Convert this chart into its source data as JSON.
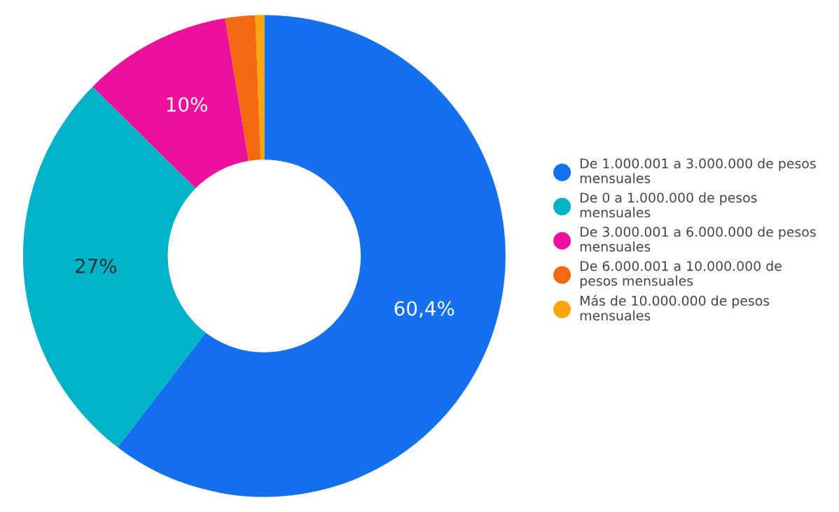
{
  "chart_data": {
    "type": "donut",
    "categories": [
      "De 1.000.001 a 3.000.000 de pesos mensuales",
      "De 0 a 1.000.000 de pesos mensuales",
      "De 3.000.001 a 6.000.000 de pesos mensuales",
      "De 6.000.001 a 10.000.000 de pesos mensuales",
      "Más de 10.000.000 de pesos mensuales"
    ],
    "values": [
      60.4,
      27,
      10,
      2,
      0.6
    ],
    "value_labels": [
      "60,4%",
      "27%",
      "10%",
      null,
      null
    ],
    "colors": [
      "#1570ee",
      "#00b2c6",
      "#ec109c",
      "#f4690f",
      "#ffa50a"
    ],
    "legend": "right"
  }
}
